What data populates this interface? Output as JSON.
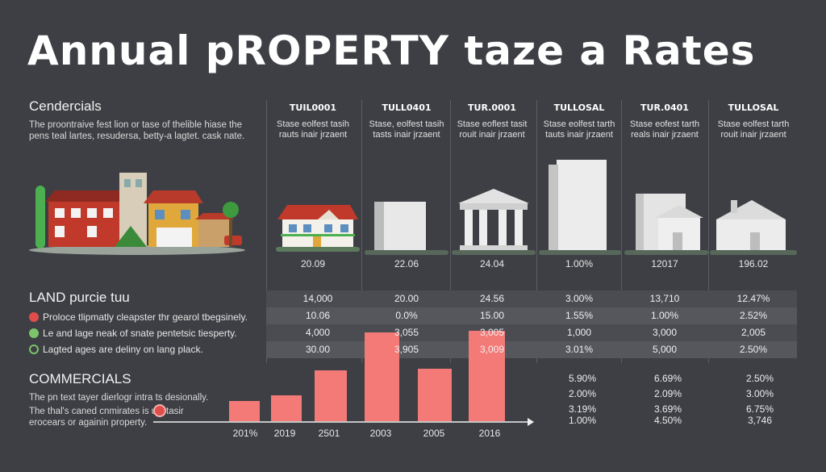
{
  "title": "Annual pROPERTY taze a Rates",
  "colors": {
    "background": "#3d3f44",
    "bar": "#f47a78",
    "accent_red": "#e14d4b",
    "accent_green": "#7cc36b"
  },
  "left": {
    "section1_title": "Cendercials",
    "section1_text1": "The proontraive fest lion or tase of thelible hiase the",
    "section1_text2": "pens teal lartes, resudersa, betty-a lagtet. cask nate.",
    "section2_title": "LAND purcie tuu",
    "legend": [
      {
        "icon": "red-circle-icon",
        "text": "Proloce tlipmatly cleapster thr gearol tbegsinely."
      },
      {
        "icon": "green-check-icon",
        "text": "Le and lage neak of snate pentetsic tiesperty."
      },
      {
        "icon": "green-ring-icon",
        "text": "Lagted ages are deliny on lang plack."
      }
    ],
    "section3_title": "COMMERCIALS",
    "section3_text1": "The pn text tayer dierlogr intra ts desionally.",
    "section3_text2": "The thal's caned cnmirates is u",
    "section3_text3": "tasir",
    "section3_text4": "erocears or againin property."
  },
  "columns": [
    {
      "code": "TUIL0001",
      "sub1": "Stase eolfest tasih",
      "sub2": "rauts inair jrzaent",
      "value": "20.09"
    },
    {
      "code": "TULL0401",
      "sub1": "Stase, eolfest tasih",
      "sub2": "tasts inair jrzaent",
      "value": "22.06"
    },
    {
      "code": "TUR.0001",
      "sub1": "Stase eoflest tasit",
      "sub2": "rouit inair jrzaent",
      "value": "24.04"
    },
    {
      "code": "TULLOSAL",
      "sub1": "Stase eolfest tarth",
      "sub2": "tauts inair jrzaent",
      "value": "1.00%"
    },
    {
      "code": "TUR.0401",
      "sub1": "Stase eofest tarth",
      "sub2": "reals inair jrzaent",
      "value": "12017"
    },
    {
      "code": "TULLOSAL",
      "sub1": "Stase eolfest tarth",
      "sub2": "rouit inair jrzaent",
      "value": "196.02"
    }
  ],
  "table_rows": [
    [
      "14,000",
      "20.00",
      "24.56",
      "3.00%",
      "13,710",
      "12.47%"
    ],
    [
      "10.06",
      "0.0%",
      "15.00",
      "1.55%",
      "1.00%",
      "2.52%"
    ],
    [
      "4,000",
      "3,055",
      "3,005",
      "1,000",
      "3,000",
      "2,005"
    ],
    [
      "30.00",
      "3,905",
      "3,009",
      "3.01%",
      "5,000",
      "2.50%"
    ]
  ],
  "bottom_pcts": [
    [
      "5.90%",
      "6.69%",
      "2.50%"
    ],
    [
      "2.00%",
      "2.09%",
      "3.00%"
    ],
    [
      "3.19%",
      "3.69%",
      "6.75%"
    ],
    [
      "1.00%",
      "4.50%",
      "3,746"
    ]
  ],
  "chart_data": {
    "type": "bar",
    "title": "",
    "categories": [
      "201%",
      "2019",
      "2501",
      "2003",
      "2005",
      "2016"
    ],
    "values": [
      25,
      32,
      63,
      110,
      65,
      112
    ],
    "ylim": [
      0,
      130
    ],
    "xlabel": "",
    "ylabel": ""
  }
}
